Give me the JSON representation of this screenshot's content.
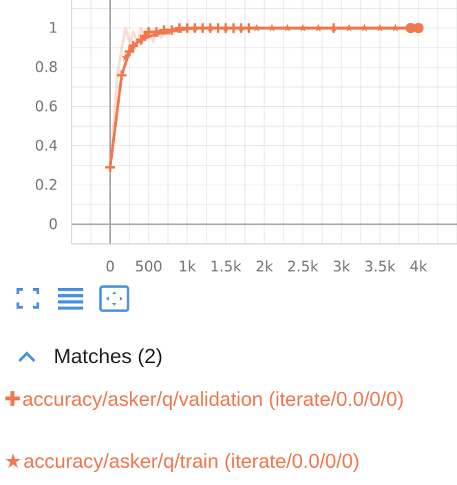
{
  "chart_data": {
    "type": "line",
    "title": "",
    "xlabel": "",
    "ylabel": "",
    "xlim": [
      -500,
      4500
    ],
    "ylim": [
      -0.1,
      1.15
    ],
    "x_ticks": [
      0,
      500,
      1000,
      1500,
      2000,
      2500,
      3000,
      3500,
      4000
    ],
    "x_tick_labels": [
      "0",
      "500",
      "1k",
      "1.5k",
      "2k",
      "2.5k",
      "3k",
      "3.5k",
      "4k"
    ],
    "y_ticks": [
      0,
      0.2,
      0.4,
      0.6,
      0.8,
      1
    ],
    "y_tick_labels": [
      "0",
      "0.2",
      "0.4",
      "0.6",
      "0.8",
      "1"
    ],
    "grid": true,
    "series": [
      {
        "name": "accuracy/asker/q/validation (iterate/0.0/0/0)",
        "marker": "plus",
        "color": "#f0784e",
        "x": [
          0,
          150,
          250,
          300,
          400,
          450,
          500,
          600,
          700,
          800,
          900,
          1000,
          1100,
          1200,
          1300,
          1400,
          1500,
          1600,
          1700,
          1800,
          2900,
          3900
        ],
        "y": [
          0.29,
          0.76,
          0.88,
          0.91,
          0.94,
          0.96,
          0.98,
          0.98,
          0.99,
          0.99,
          1.0,
          1.0,
          1.0,
          1.0,
          1.0,
          1.0,
          1.0,
          1.0,
          1.0,
          1.0,
          1.0,
          1.0
        ]
      },
      {
        "name": "accuracy/asker/q/train (iterate/0.0/0/0)",
        "marker": "star",
        "color": "#f0784e",
        "x": [
          200,
          300,
          400,
          600,
          750,
          900,
          1100,
          1300,
          1500,
          1700,
          1900,
          2100,
          2300,
          2500,
          2700,
          2900,
          3100,
          3300,
          3500,
          3700,
          4000
        ],
        "y": [
          0.85,
          0.91,
          0.94,
          0.97,
          0.98,
          0.99,
          1.0,
          1.0,
          1.0,
          1.0,
          1.0,
          1.0,
          1.0,
          1.0,
          1.0,
          1.0,
          1.0,
          1.0,
          1.0,
          1.0,
          1.0
        ]
      }
    ],
    "raw_shadow": {
      "x": [
        0,
        100,
        200,
        260,
        300,
        360,
        400,
        460,
        500,
        560,
        600,
        660,
        700,
        800,
        900,
        1000
      ],
      "y": [
        0.29,
        0.78,
        1.0,
        0.92,
        0.98,
        0.93,
        1.0,
        0.94,
        1.0,
        0.93,
        0.99,
        0.95,
        0.99,
        0.98,
        1.0,
        1.0
      ]
    }
  },
  "toolbar": {
    "fullscreen_icon": "fullscreen-icon",
    "data_table_icon": "list-icon",
    "fit_domain_icon": "fit-domain-icon"
  },
  "matches": {
    "label": "Matches (2)",
    "items": [
      {
        "symbol": "✚",
        "text": "accuracy/asker/q/validation (iterate/0.0/0/0)"
      },
      {
        "symbol": "★",
        "text": "accuracy/asker/q/train (iterate/0.0/0/0)"
      }
    ]
  },
  "colors": {
    "series": "#f0784e",
    "accent_blue": "#4a90e2",
    "grid": "#e0e0e0",
    "axis": "#9e9e9e"
  }
}
